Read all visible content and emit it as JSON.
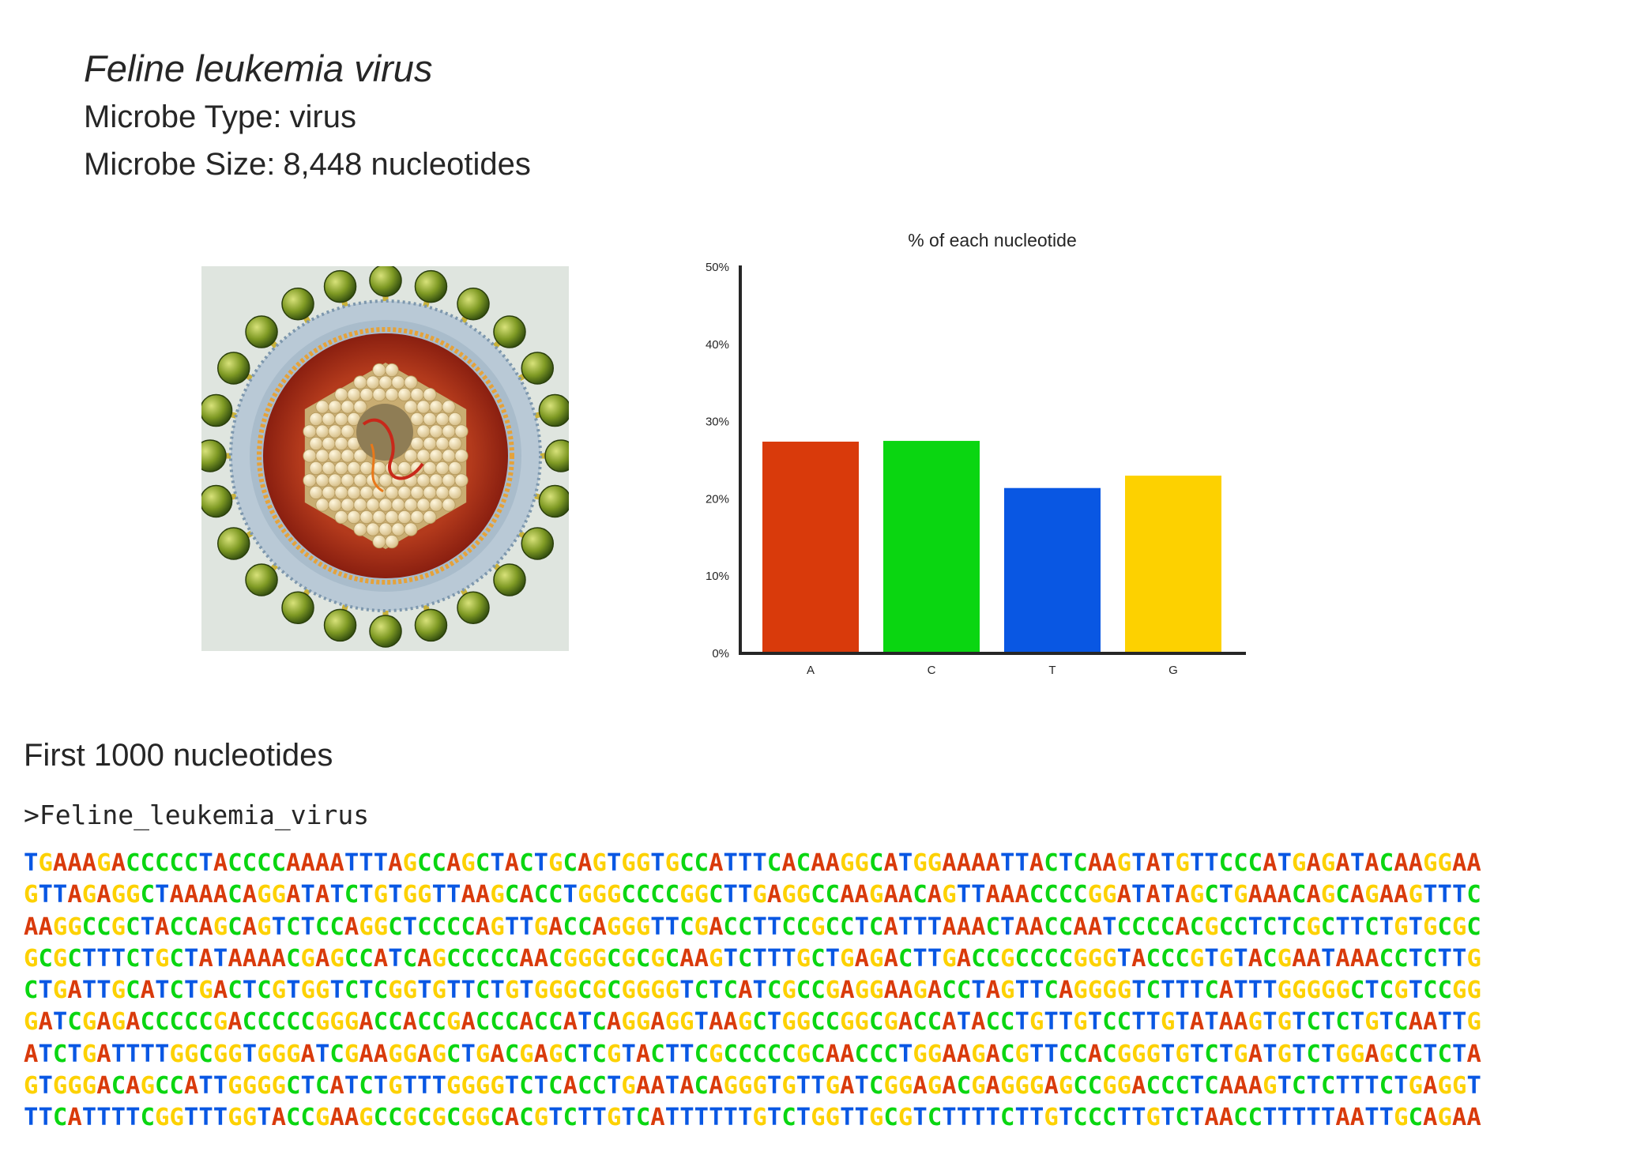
{
  "organism": {
    "name": "Feline leukemia virus",
    "type_label": "Microbe Type:",
    "type_value": "virus",
    "size_label": "Microbe Size:",
    "size_value": "8,448 nucleotides"
  },
  "image": {
    "alt": "Illustration of Feline leukemia virus particle"
  },
  "chart_data": {
    "type": "bar",
    "title": "% of each nucleotide",
    "xlabel": "",
    "ylabel": "",
    "categories": [
      "A",
      "C",
      "T",
      "G"
    ],
    "values": [
      27.4,
      27.5,
      21.4,
      23.0
    ],
    "colors": [
      "#d93a0b",
      "#0ad611",
      "#0957e3",
      "#fdd100"
    ],
    "ylim": [
      0,
      50
    ],
    "yticks": [
      0,
      10,
      20,
      30,
      40,
      50
    ],
    "ytick_labels": [
      "0%",
      "10%",
      "20%",
      "30%",
      "40%",
      "50%"
    ],
    "grid": false,
    "legend": "none"
  },
  "sequence": {
    "heading": "First 1000 nucleotides",
    "fasta_header": ">Feline_leukemia_virus",
    "nucleotide_colors": {
      "A": "#d93a0b",
      "C": "#0ad611",
      "T": "#0957e3",
      "G": "#fdd100"
    },
    "lines": [
      "TGAAAGACCCCCTACCCCAAAATTTAGCCAGCTACTGCAGTGGTGCCATTTCACAAGGCATGGAAAATTACTCAAGTATGTTCCCATGAGATACAAGGAA",
      "GTTAGAGGCTAAAACAGGATATCTGTGGTTAAGCACCTGGGCCCCGGCTTGAGGCCAAGAACAGTTAAACCCCGGATATAGCTGAAACAGCAGAAGTTTC",
      "AAGGCCGCTACCAGCAGTCTCCAGGCTCCCCAGTTGACCAGGGTTCGACCTTCCGCCTCATTTAAACTAACCAATCCCCACGCCTCTCGCTTCTGTGCGC",
      "GCGCTTTCTGCTATAAAACGAGCCATCAGCCCCCAACGGGCGCGCAAGTCTTTGCTGAGACTTGACCGCCCCGGGTACCCGTGTACGAATAAACCTCTTG",
      "CTGATTGCATCTGACTCGTGGTCTCGGTGTTCTGTGGGCGCGGGGTCTCATCGCCGAGGAAGACCTAGTTCAGGGGTCTTTCATTTGGGGGCTCGTCCGG",
      "GATCGAGACCCCCGACCCCCGGGACCACCGACCCACCATCAGGAGGTAAGCTGGCCGGCGACCATACCTGTTGTCCTTGTATAAGTGTCTCTGTCAATTG",
      "ATCTGATTTTGGCGGTGGGATCGAAGGAGCTGACGAGCTCGTACTTCGCCCCCGCAACCCTGGAAGACGTTCCACGGGTGTCTGATGTCTGGAGCCTCTA",
      "GTGGGACAGCCATTGGGGCTCATCTGTTTGGGGTCTCACCTGAATACAGGGTGTTGATCGGAGACGAGGGAGCCGGACCCTCAAAGTCTCTTTCTGAGGT",
      "TTCATTTTCGGTTTGGTACCGAAGCCGCGCGGCACGTCTTGTCATTTTTTGTCTGGTTGCGTCTTTTCTTGTCCCTTGTCTAACCTTTTTAATTGCAGAA"
    ]
  }
}
